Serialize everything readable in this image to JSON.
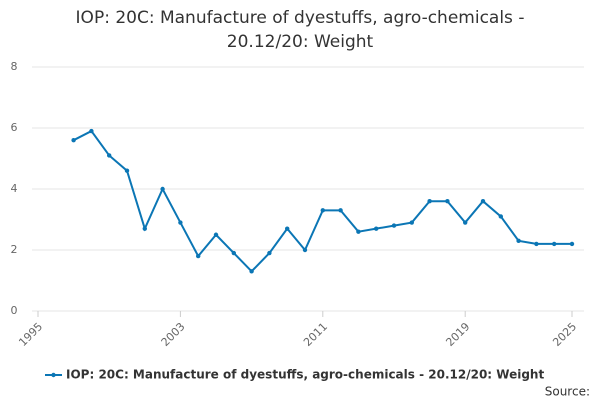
{
  "chart_data": {
    "type": "line",
    "title": "IOP: 20C: Manufacture of dyestuffs, agro-chemicals - 20.12/20: Weight",
    "x": [
      1997,
      1998,
      1999,
      2000,
      2001,
      2002,
      2003,
      2004,
      2005,
      2006,
      2007,
      2008,
      2009,
      2010,
      2011,
      2012,
      2013,
      2014,
      2015,
      2016,
      2017,
      2018,
      2019,
      2020,
      2021,
      2022,
      2023,
      2024,
      2025
    ],
    "series": [
      {
        "name": "IOP: 20C: Manufacture of dyestuffs, agro-chemicals - 20.12/20: Weight",
        "color": "#0b76b5",
        "values": [
          5.6,
          5.9,
          5.1,
          4.6,
          2.7,
          4.0,
          2.9,
          1.8,
          2.5,
          1.9,
          1.3,
          1.9,
          2.7,
          2.0,
          3.3,
          3.3,
          2.6,
          2.7,
          2.8,
          2.9,
          3.6,
          3.6,
          2.9,
          3.6,
          3.1,
          2.3,
          2.2,
          2.2,
          2.2
        ]
      }
    ],
    "xlim": [
      1995,
      2025
    ],
    "xticks": [
      1995,
      2003,
      2011,
      2019,
      2025
    ],
    "ylim": [
      0,
      8
    ],
    "yticks": [
      0,
      2,
      4,
      6,
      8
    ],
    "grid": true,
    "source": "Source:"
  }
}
